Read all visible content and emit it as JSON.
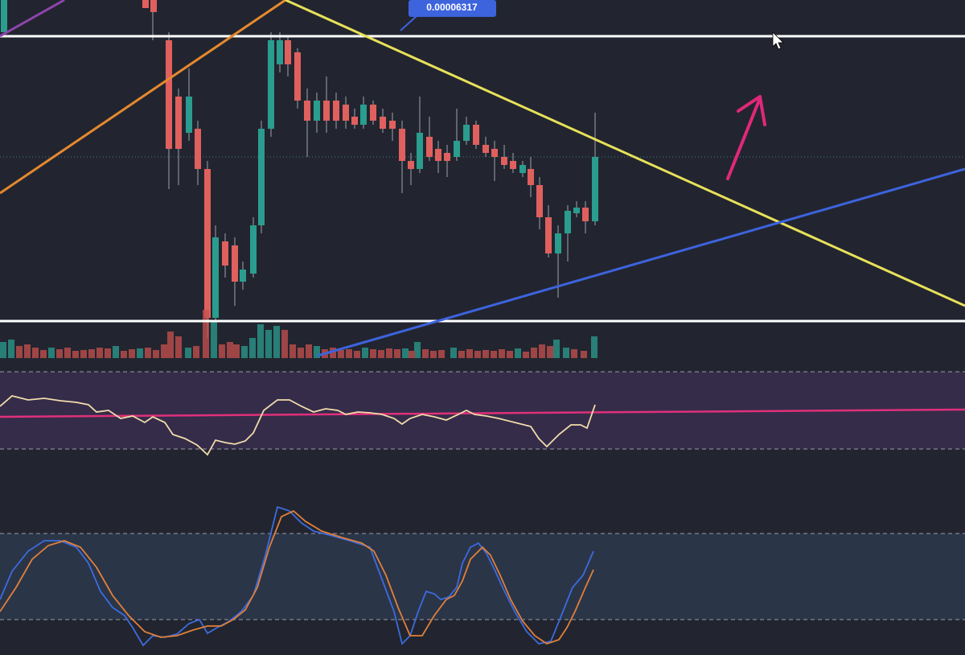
{
  "price_label": "0.00006317"
}
